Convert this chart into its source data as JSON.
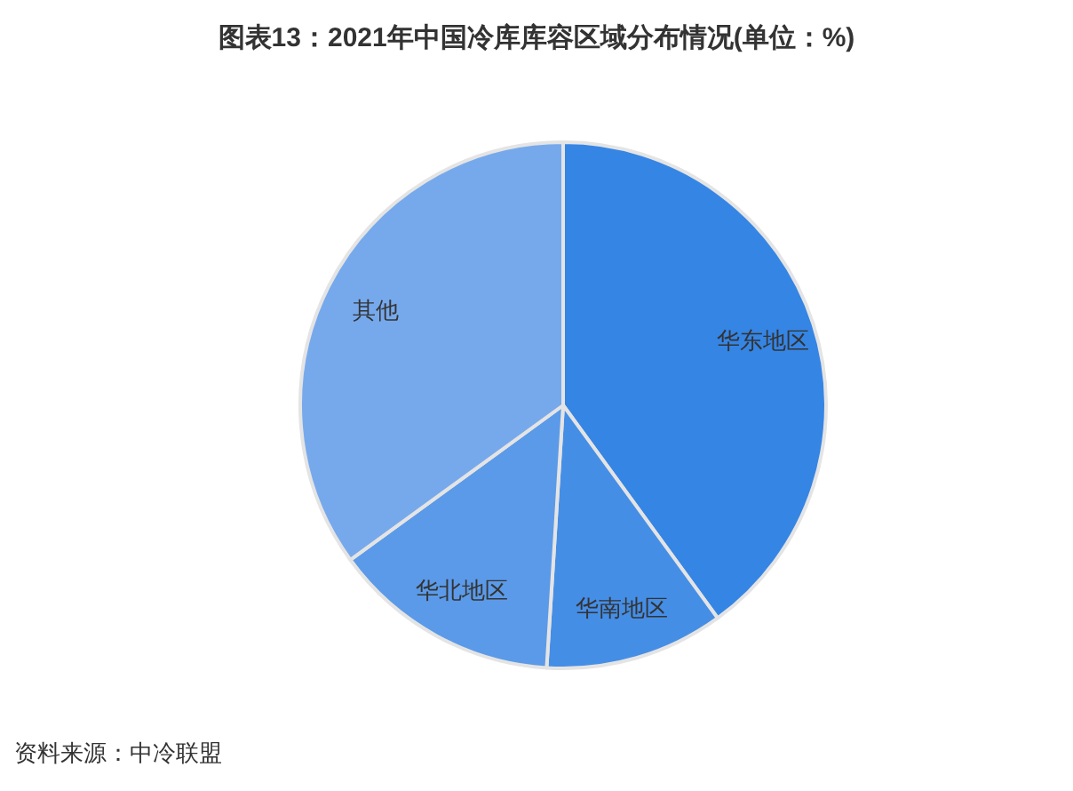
{
  "chart_data": {
    "type": "pie",
    "title": "图表13：2021年中国冷库库容区域分布情况(单位：%)",
    "categories": [
      "华东地区",
      "华南地区",
      "华北地区",
      "其他"
    ],
    "values": [
      40,
      11,
      14,
      35
    ],
    "colors": [
      "#3585e5",
      "#458ee6",
      "#5b9ae8",
      "#76a9ec"
    ],
    "annotations": [
      "资料来源：中冷联盟"
    ]
  }
}
